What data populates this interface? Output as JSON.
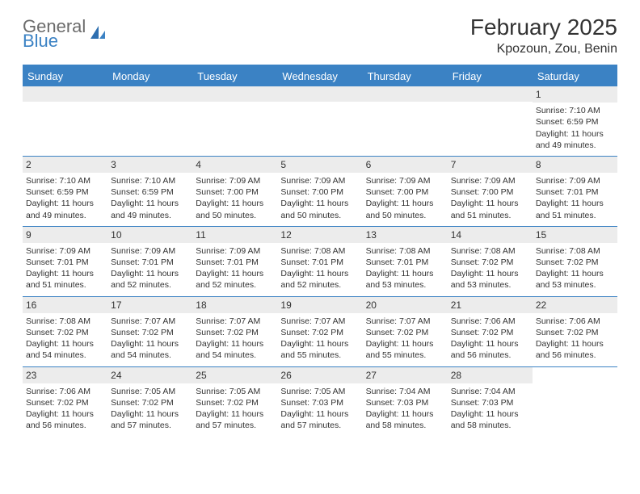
{
  "brand": {
    "general": "General",
    "blue": "Blue"
  },
  "title": "February 2025",
  "location": "Kpozoun, Zou, Benin",
  "colors": {
    "accent": "#3b82c4",
    "header_text": "#ffffff",
    "daynum_bg": "#ececec",
    "text": "#333333",
    "logo_gray": "#6b6b6b"
  },
  "day_headers": [
    "Sunday",
    "Monday",
    "Tuesday",
    "Wednesday",
    "Thursday",
    "Friday",
    "Saturday"
  ],
  "weeks": [
    [
      null,
      null,
      null,
      null,
      null,
      null,
      {
        "n": "1",
        "sunrise": "7:10 AM",
        "sunset": "6:59 PM",
        "day_h": "11",
        "day_m": "49"
      }
    ],
    [
      {
        "n": "2",
        "sunrise": "7:10 AM",
        "sunset": "6:59 PM",
        "day_h": "11",
        "day_m": "49"
      },
      {
        "n": "3",
        "sunrise": "7:10 AM",
        "sunset": "6:59 PM",
        "day_h": "11",
        "day_m": "49"
      },
      {
        "n": "4",
        "sunrise": "7:09 AM",
        "sunset": "7:00 PM",
        "day_h": "11",
        "day_m": "50"
      },
      {
        "n": "5",
        "sunrise": "7:09 AM",
        "sunset": "7:00 PM",
        "day_h": "11",
        "day_m": "50"
      },
      {
        "n": "6",
        "sunrise": "7:09 AM",
        "sunset": "7:00 PM",
        "day_h": "11",
        "day_m": "50"
      },
      {
        "n": "7",
        "sunrise": "7:09 AM",
        "sunset": "7:00 PM",
        "day_h": "11",
        "day_m": "51"
      },
      {
        "n": "8",
        "sunrise": "7:09 AM",
        "sunset": "7:01 PM",
        "day_h": "11",
        "day_m": "51"
      }
    ],
    [
      {
        "n": "9",
        "sunrise": "7:09 AM",
        "sunset": "7:01 PM",
        "day_h": "11",
        "day_m": "51"
      },
      {
        "n": "10",
        "sunrise": "7:09 AM",
        "sunset": "7:01 PM",
        "day_h": "11",
        "day_m": "52"
      },
      {
        "n": "11",
        "sunrise": "7:09 AM",
        "sunset": "7:01 PM",
        "day_h": "11",
        "day_m": "52"
      },
      {
        "n": "12",
        "sunrise": "7:08 AM",
        "sunset": "7:01 PM",
        "day_h": "11",
        "day_m": "52"
      },
      {
        "n": "13",
        "sunrise": "7:08 AM",
        "sunset": "7:01 PM",
        "day_h": "11",
        "day_m": "53"
      },
      {
        "n": "14",
        "sunrise": "7:08 AM",
        "sunset": "7:02 PM",
        "day_h": "11",
        "day_m": "53"
      },
      {
        "n": "15",
        "sunrise": "7:08 AM",
        "sunset": "7:02 PM",
        "day_h": "11",
        "day_m": "53"
      }
    ],
    [
      {
        "n": "16",
        "sunrise": "7:08 AM",
        "sunset": "7:02 PM",
        "day_h": "11",
        "day_m": "54"
      },
      {
        "n": "17",
        "sunrise": "7:07 AM",
        "sunset": "7:02 PM",
        "day_h": "11",
        "day_m": "54"
      },
      {
        "n": "18",
        "sunrise": "7:07 AM",
        "sunset": "7:02 PM",
        "day_h": "11",
        "day_m": "54"
      },
      {
        "n": "19",
        "sunrise": "7:07 AM",
        "sunset": "7:02 PM",
        "day_h": "11",
        "day_m": "55"
      },
      {
        "n": "20",
        "sunrise": "7:07 AM",
        "sunset": "7:02 PM",
        "day_h": "11",
        "day_m": "55"
      },
      {
        "n": "21",
        "sunrise": "7:06 AM",
        "sunset": "7:02 PM",
        "day_h": "11",
        "day_m": "56"
      },
      {
        "n": "22",
        "sunrise": "7:06 AM",
        "sunset": "7:02 PM",
        "day_h": "11",
        "day_m": "56"
      }
    ],
    [
      {
        "n": "23",
        "sunrise": "7:06 AM",
        "sunset": "7:02 PM",
        "day_h": "11",
        "day_m": "56"
      },
      {
        "n": "24",
        "sunrise": "7:05 AM",
        "sunset": "7:02 PM",
        "day_h": "11",
        "day_m": "57"
      },
      {
        "n": "25",
        "sunrise": "7:05 AM",
        "sunset": "7:02 PM",
        "day_h": "11",
        "day_m": "57"
      },
      {
        "n": "26",
        "sunrise": "7:05 AM",
        "sunset": "7:03 PM",
        "day_h": "11",
        "day_m": "57"
      },
      {
        "n": "27",
        "sunrise": "7:04 AM",
        "sunset": "7:03 PM",
        "day_h": "11",
        "day_m": "58"
      },
      {
        "n": "28",
        "sunrise": "7:04 AM",
        "sunset": "7:03 PM",
        "day_h": "11",
        "day_m": "58"
      },
      null
    ]
  ],
  "labels": {
    "sunrise_prefix": "Sunrise: ",
    "sunset_prefix": "Sunset: ",
    "daylight_prefix": "Daylight: ",
    "hours_word": " hours and ",
    "minutes_word": " minutes."
  }
}
